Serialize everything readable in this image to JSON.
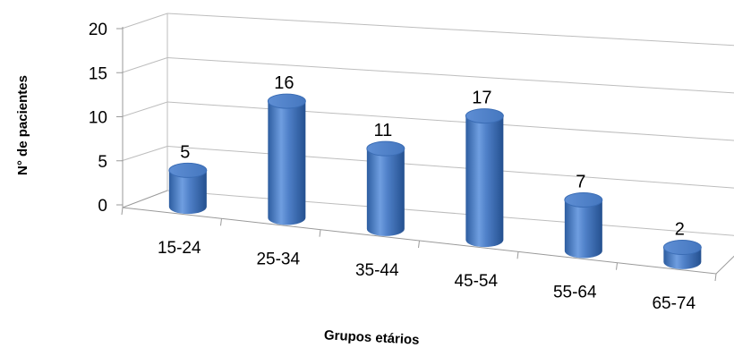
{
  "chart_data": {
    "type": "bar",
    "style": "3d-cylinder",
    "categories": [
      "15-24",
      "25-34",
      "35-44",
      "45-54",
      "55-64",
      "65-74"
    ],
    "values": [
      5,
      16,
      11,
      17,
      7,
      2
    ],
    "xlabel": "Grupos etários",
    "ylabel": "N° de pacientes",
    "ylim": [
      0,
      20
    ],
    "yticks": [
      0,
      5,
      10,
      15,
      20
    ],
    "grid": true,
    "legend": "none",
    "colors": {
      "bar_main": "#4a7bc4",
      "bar_light": "#8fb4e6",
      "bar_dark": "#2a5290",
      "bar_top": "#6e9bd8"
    }
  }
}
